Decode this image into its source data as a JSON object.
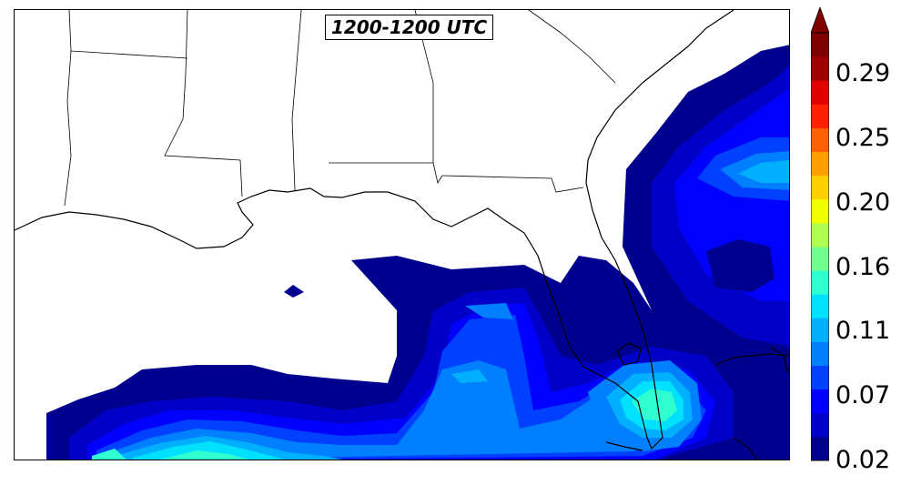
{
  "map": {
    "title": "1200-1200 UTC",
    "region": "Gulf of Mexico / Florida",
    "field": "filled contour shading over ocean"
  },
  "colorbar": {
    "ticks": [
      "0.29",
      "0.25",
      "0.20",
      "0.16",
      "0.11",
      "0.07",
      "0.02"
    ],
    "extend": "max",
    "colors": [
      "#00008f",
      "#0000c8",
      "#0000ff",
      "#0040ff",
      "#0080ff",
      "#00b0ff",
      "#00e0ff",
      "#30ffd0",
      "#70ff90",
      "#b0ff50",
      "#f0ff00",
      "#ffd000",
      "#ffa000",
      "#ff6000",
      "#ff2000",
      "#e00000",
      "#a00000",
      "#800000"
    ]
  }
}
